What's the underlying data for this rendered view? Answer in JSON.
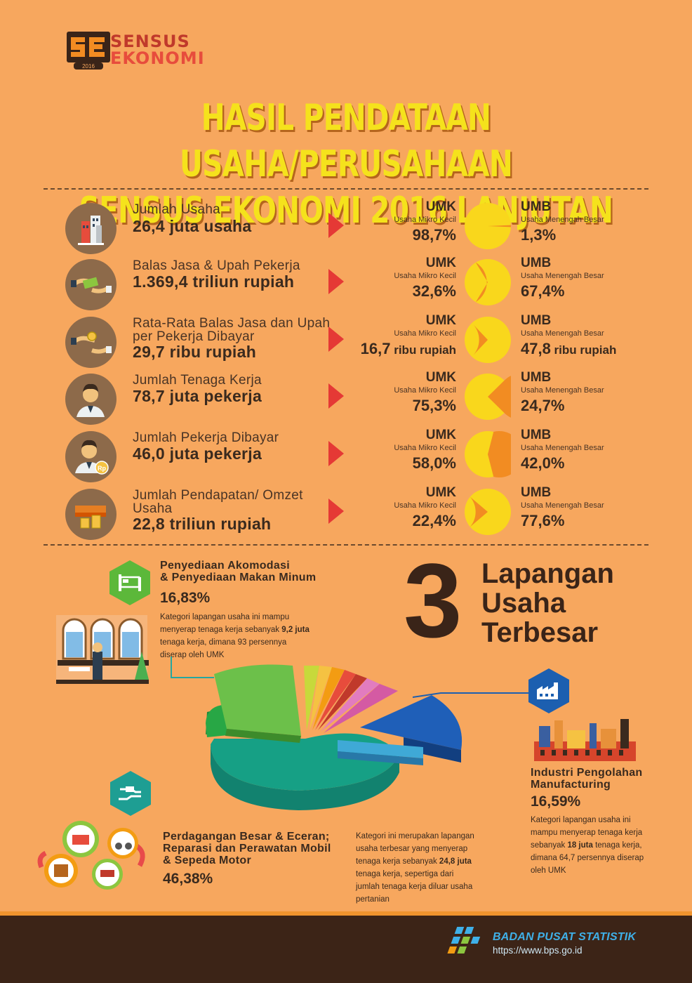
{
  "logo": {
    "line1": "SENSUS",
    "line2": "EKONOMI",
    "year": "2016",
    "mark": "SE"
  },
  "title": {
    "line1": "HASIL PENDATAAN USAHA/PERUSAHAAN",
    "line2": "SENSUS EKONOMI 2016 LANJUTAN"
  },
  "stats": [
    {
      "icon": "building-icon",
      "label": "Jumlah Usaha",
      "value": "26,4 juta usaha",
      "umk": {
        "code": "UMK",
        "sub": "Usaha Mikro Kecil",
        "pct": "98,7%",
        "share": 0.987
      },
      "umb": {
        "code": "UMB",
        "sub": "Usaha Menengah Besar",
        "pct": "1,3%",
        "share": 0.013
      }
    },
    {
      "icon": "money-hands-icon",
      "label": "Balas Jasa & Upah Pekerja",
      "value": "1.369,4 triliun rupiah",
      "umk": {
        "code": "UMK",
        "sub": "Usaha Mikro Kecil",
        "pct": "32,6%",
        "share": 0.326
      },
      "umb": {
        "code": "UMB",
        "sub": "Usaha Menengah Besar",
        "pct": "67,4%",
        "share": 0.674
      }
    },
    {
      "icon": "coin-hands-icon",
      "label": "Rata-Rata Balas Jasa dan Upah per Pekerja Dibayar",
      "value": "29,7 ribu rupiah",
      "umk": {
        "code": "UMK",
        "sub": "Usaha Mikro Kecil",
        "num": "16,7",
        "unit": " ribu rupiah",
        "share": 0.259
      },
      "umb": {
        "code": "UMB",
        "sub": "Usaha Menengah Besar",
        "num": "47,8",
        "unit": " ribu rupiah",
        "share": 0.741
      }
    },
    {
      "icon": "worker-icon",
      "label": "Jumlah Tenaga Kerja",
      "value": "78,7 juta pekerja",
      "umk": {
        "code": "UMK",
        "sub": "Usaha Mikro Kecil",
        "pct": "75,3%",
        "share": 0.753
      },
      "umb": {
        "code": "UMB",
        "sub": "Usaha Menengah Besar",
        "pct": "24,7%",
        "share": 0.247
      }
    },
    {
      "icon": "paid-worker-icon",
      "label": "Jumlah Pekerja Dibayar",
      "value": "46,0 juta pekerja",
      "badge": "Rp",
      "umk": {
        "code": "UMK",
        "sub": "Usaha Mikro Kecil",
        "pct": "58,0%",
        "share": 0.58
      },
      "umb": {
        "code": "UMB",
        "sub": "Usaha Menengah Besar",
        "pct": "42,0%",
        "share": 0.42
      }
    },
    {
      "icon": "cash-coins-icon",
      "label": "Jumlah Pendapatan/ Omzet Usaha",
      "value": "22,8 triliun rupiah",
      "umk": {
        "code": "UMK",
        "sub": "Usaha Mikro Kecil",
        "pct": "22,4%",
        "share": 0.224
      },
      "umb": {
        "code": "UMB",
        "sub": "Usaha Menengah Besar",
        "pct": "77,6%",
        "share": 0.776
      }
    }
  ],
  "big3": {
    "number": "3",
    "line1": "Lapangan",
    "line2": "Usaha",
    "line3": "Terbesar"
  },
  "categories": {
    "akomodasi": {
      "title1": "Penyediaan Akomodasi",
      "title2": "& Penyediaan Makan Minum",
      "pct": "16,83%",
      "desc1": "Kategori lapangan usaha ini mampu",
      "desc2a": "menyerap tenaga kerja sebanyak ",
      "desc2b": "9,2 juta",
      "desc3": "tenaga kerja, dimana 93 persennya",
      "desc4": "diserap oleh UMK"
    },
    "industri": {
      "title1": "Industri Pengolahan",
      "title2": "Manufacturing",
      "pct": "16,59%",
      "desc1": "Kategori lapangan usaha ini",
      "desc2": "mampu menyerap tenaga kerja",
      "desc3a": "sebanyak ",
      "desc3b": "18 juta",
      "desc3c": " tenaga kerja,",
      "desc4": "dimana 64,7 persennya diserap",
      "desc5": "oleh UMK"
    },
    "perdagangan": {
      "title1": "Perdagangan Besar & Eceran;",
      "title2": "Reparasi dan Perawatan Mobil",
      "title3": "& Sepeda Motor",
      "pct": "46,38%",
      "desc1": "Kategori ini merupakan lapangan",
      "desc2": "usaha terbesar yang menyerap",
      "desc3a": "tenaga kerja sebanyak ",
      "desc3b": "24,8 juta",
      "desc4": "tenaga kerja, sepertiga dari",
      "desc5": "jumlah tenaga kerja diluar usaha",
      "desc6": "pertanian"
    }
  },
  "footer": {
    "name": "BADAN PUSAT STATISTIK",
    "url": "https://www.bps.go.id"
  },
  "colors": {
    "background": "#f7a75e",
    "umk_pie": "#f28c22",
    "umb_pie": "#f9d71c",
    "title": "#f5e21c",
    "arrow": "#e53935"
  }
}
